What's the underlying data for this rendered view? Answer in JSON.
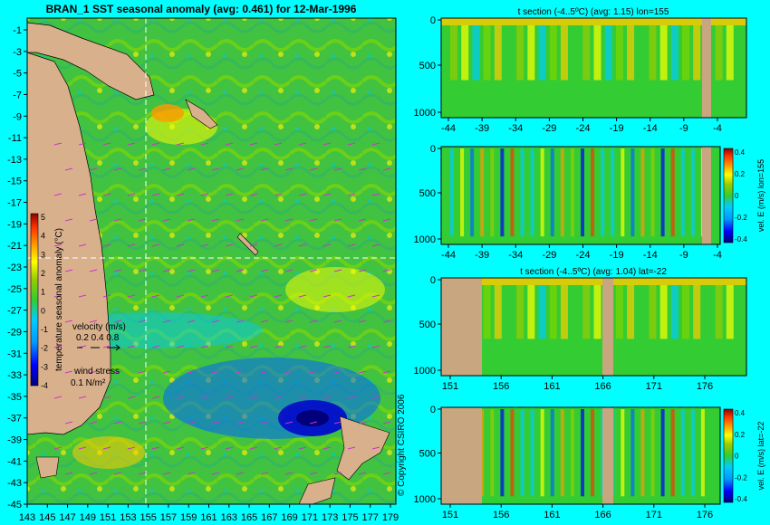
{
  "main_title": "BRAN_1 SST seasonal anomaly (avg: 0.461) for 12-Mar-1996",
  "copyright": "© Copyright CSIRO 2006",
  "colors": {
    "background": "#00ffff",
    "land": "#d9b08c",
    "sea_base": "#3fbf3f",
    "scale": [
      "#00007a",
      "#0000ff",
      "#0066ff",
      "#00ccff",
      "#33cc33",
      "#99cc00",
      "#ffff00",
      "#ff9900",
      "#ff3300",
      "#cc0000",
      "#7a0000"
    ]
  },
  "chart_data": [
    {
      "type": "heatmap",
      "title": "BRAN_1 SST seasonal anomaly (avg: 0.461) for 12-Mar-1996",
      "ylim": [
        -45,
        0
      ],
      "xlim": [
        143,
        180
      ],
      "y_ticks": [
        "-1",
        "-3",
        "-5",
        "-7",
        "-9",
        "-11",
        "-13",
        "-15",
        "-17",
        "-19",
        "-21",
        "-23",
        "-25",
        "-27",
        "-29",
        "-31",
        "-33",
        "-35",
        "-37",
        "-39",
        "-41",
        "-43",
        "-45"
      ],
      "x_ticks": [
        "143",
        "145",
        "147",
        "149",
        "151",
        "153",
        "155",
        "157",
        "159",
        "161",
        "163",
        "165",
        "167",
        "169",
        "171",
        "173",
        "175",
        "177",
        "179"
      ],
      "crosshair": {
        "lon": 155,
        "lat": -22
      },
      "colorbar": {
        "label": "temperature seasonal anomaly (°C)",
        "ticks": [
          "5",
          "4",
          "3",
          "2",
          "1",
          "0",
          "-1",
          "-2",
          "-3",
          "-4"
        ],
        "range": [
          -4,
          5
        ]
      },
      "velocity_legend": {
        "label": "velocity (m/s)",
        "values": [
          "0.2",
          "0.4",
          "0.8"
        ]
      },
      "wind_legend": {
        "label": "wind stress",
        "value": "0.1 N/m²"
      }
    },
    {
      "type": "heatmap",
      "title": "t section (-4..5ºC) (avg: 1.15) lon=155",
      "x_ticks": [
        "-44",
        "-39",
        "-34",
        "-29",
        "-24",
        "-19",
        "-14",
        "-9",
        "-4"
      ],
      "y_ticks": [
        "0",
        "500",
        "1000"
      ],
      "xlim": [
        -45,
        0
      ],
      "ylim": [
        1000,
        0
      ]
    },
    {
      "type": "heatmap",
      "title": "",
      "x_ticks": [
        "-44",
        "-39",
        "-34",
        "-29",
        "-24",
        "-19",
        "-14",
        "-9",
        "-4"
      ],
      "y_ticks": [
        "0",
        "500",
        "1000"
      ],
      "xlim": [
        -45,
        0
      ],
      "ylim": [
        1000,
        0
      ],
      "colorbar": {
        "label": "vel. E (m/s) lon=155",
        "ticks": [
          "0.4",
          "0.2",
          "0",
          "-0.2",
          "-0.4"
        ]
      }
    },
    {
      "type": "heatmap",
      "title": "t section (-4..5ºC) (avg: 1.04) lat=-22",
      "x_ticks": [
        "151",
        "156",
        "161",
        "166",
        "171",
        "176"
      ],
      "y_ticks": [
        "0",
        "500",
        "1000"
      ],
      "xlim": [
        150,
        180
      ],
      "ylim": [
        1000,
        0
      ]
    },
    {
      "type": "heatmap",
      "title": "",
      "x_ticks": [
        "151",
        "156",
        "161",
        "166",
        "171",
        "176"
      ],
      "y_ticks": [
        "0",
        "500",
        "1000"
      ],
      "xlim": [
        150,
        180
      ],
      "ylim": [
        1000,
        0
      ],
      "colorbar": {
        "label": "vel. E (m/s) lat=-22",
        "ticks": [
          "0.4",
          "0.2",
          "0",
          "-0.2",
          "-0.4"
        ]
      }
    }
  ]
}
